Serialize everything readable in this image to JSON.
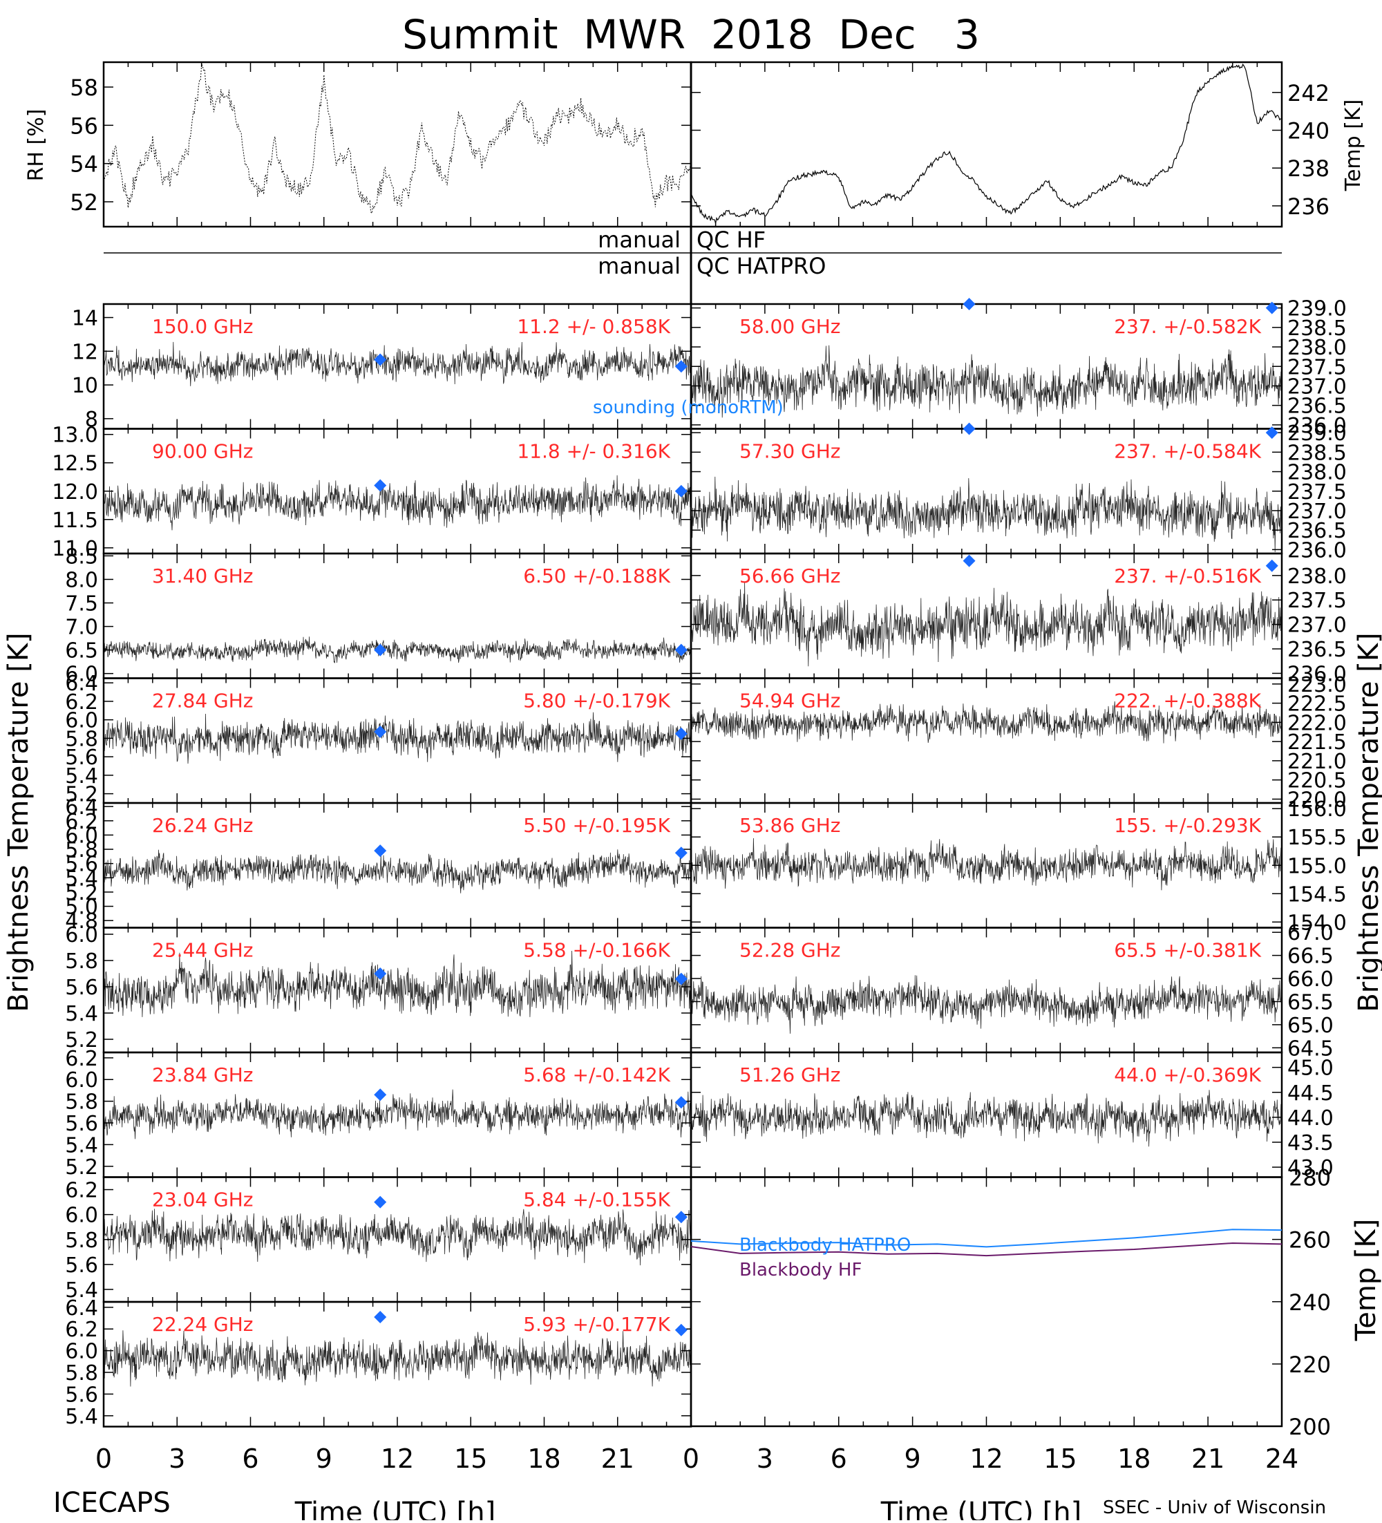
{
  "title": "Summit  MWR  2018  Dec   3",
  "footer": {
    "left": "ICECAPS",
    "right": "SSEC - Univ of Wisconsin"
  },
  "xlabel": "Time (UTC) [h]",
  "ylabel_left": "Brightness Temperature [K]",
  "ylabel_right": "Brightness Temperature [K]",
  "qc": {
    "line1": "manual",
    "line1b": "QC HF",
    "line2": "manual",
    "line2b": "QC HATPRO"
  },
  "legend": {
    "sounding": "sounding (monoRTM)",
    "bb_hatpro": "Blackbody HATPRO",
    "bb_hf": "Blackbody HF"
  },
  "colors": {
    "label": "#ff2a2a",
    "diamond": "#1a6bff",
    "trace": "#000000",
    "bb_hatpro": "#1a86ff",
    "bb_hf": "#6a1a6a"
  },
  "chart_data": {
    "xlim": [
      0,
      24
    ],
    "xticks": [
      0,
      3,
      6,
      9,
      12,
      15,
      18,
      21
    ],
    "xticks_right": [
      0,
      3,
      6,
      9,
      12,
      15,
      18,
      21,
      24
    ],
    "top": {
      "rh": {
        "ylabel": "RH [%]",
        "ylim": [
          50.7,
          59.3
        ],
        "ticks": [
          52,
          54,
          56,
          58
        ],
        "series": [
          [
            0,
            53.5
          ],
          [
            0.5,
            54.5
          ],
          [
            1,
            52
          ],
          [
            1.5,
            54
          ],
          [
            2,
            55
          ],
          [
            2.5,
            53
          ],
          [
            3,
            53.5
          ],
          [
            3.5,
            55
          ],
          [
            4,
            59
          ],
          [
            4.5,
            57
          ],
          [
            5,
            58
          ],
          [
            5.5,
            56
          ],
          [
            6,
            53
          ],
          [
            6.5,
            52.5
          ],
          [
            7,
            55
          ],
          [
            7.5,
            53
          ],
          [
            8,
            52.5
          ],
          [
            8.5,
            53.5
          ],
          [
            9,
            58.5
          ],
          [
            9.5,
            54
          ],
          [
            10,
            54.5
          ],
          [
            10.5,
            52.5
          ],
          [
            11,
            51.5
          ],
          [
            11.5,
            53.5
          ],
          [
            12,
            52
          ],
          [
            12.5,
            52.5
          ],
          [
            13,
            56
          ],
          [
            13.5,
            54
          ],
          [
            14,
            53
          ],
          [
            14.5,
            56.5
          ],
          [
            15,
            55
          ],
          [
            15.5,
            54
          ],
          [
            16,
            55.5
          ],
          [
            16.5,
            56
          ],
          [
            17,
            57
          ],
          [
            17.5,
            56
          ],
          [
            18,
            55
          ],
          [
            18.5,
            56.5
          ],
          [
            19,
            56.5
          ],
          [
            19.5,
            57
          ],
          [
            20,
            56
          ],
          [
            20.5,
            55.5
          ],
          [
            21,
            56
          ],
          [
            21.5,
            55
          ],
          [
            22,
            56
          ],
          [
            22.5,
            52
          ],
          [
            23,
            53
          ],
          [
            23.5,
            53
          ],
          [
            24,
            54
          ]
        ]
      },
      "temp": {
        "ylabel": "Temp [K]",
        "ylim": [
          234.9,
          243.6
        ],
        "ticks": [
          236,
          238,
          240,
          242
        ],
        "series": [
          [
            0,
            236.5
          ],
          [
            0.5,
            235.5
          ],
          [
            1,
            235.2
          ],
          [
            1.5,
            235.7
          ],
          [
            2,
            235.4
          ],
          [
            2.5,
            235.8
          ],
          [
            3,
            235.5
          ],
          [
            3.5,
            236.3
          ],
          [
            4,
            237.3
          ],
          [
            4.5,
            237.6
          ],
          [
            5,
            237.7
          ],
          [
            5.5,
            237.8
          ],
          [
            6,
            237.5
          ],
          [
            6.5,
            235.9
          ],
          [
            7,
            236.2
          ],
          [
            7.5,
            236.1
          ],
          [
            8,
            236.6
          ],
          [
            8.5,
            236.3
          ],
          [
            9,
            237
          ],
          [
            9.5,
            237.8
          ],
          [
            10,
            238.5
          ],
          [
            10.5,
            238.9
          ],
          [
            11,
            237.8
          ],
          [
            11.5,
            237.3
          ],
          [
            12,
            236.5
          ],
          [
            12.5,
            236
          ],
          [
            13,
            235.6
          ],
          [
            13.5,
            236.2
          ],
          [
            14,
            236.8
          ],
          [
            14.5,
            237.3
          ],
          [
            15,
            236.3
          ],
          [
            15.5,
            236
          ],
          [
            16,
            236.3
          ],
          [
            16.5,
            236.8
          ],
          [
            17,
            237.1
          ],
          [
            17.5,
            237.6
          ],
          [
            18,
            237.2
          ],
          [
            18.5,
            237.1
          ],
          [
            19,
            237.7
          ],
          [
            19.5,
            238
          ],
          [
            20,
            239.5
          ],
          [
            20.5,
            241.9
          ],
          [
            21,
            242.6
          ],
          [
            21.5,
            243.1
          ],
          [
            22,
            243.3
          ],
          [
            22.5,
            243.4
          ],
          [
            23,
            240.4
          ],
          [
            23.5,
            241
          ],
          [
            24,
            240.5
          ]
        ]
      }
    },
    "left_panels": [
      {
        "freq": "150.0 GHz",
        "stat": "11.2 +/- 0.858K",
        "ylim": [
          7.4,
          14.8
        ],
        "ticks": [
          8,
          10,
          12,
          14
        ],
        "tick_labels": [
          "8",
          "10",
          "12",
          "14"
        ],
        "mean": 11.2,
        "noise": 0.858,
        "sounding": [
          [
            11.3,
            11.5
          ],
          [
            23.6,
            11.1
          ]
        ]
      },
      {
        "freq": "90.00 GHz",
        "stat": "11.8 +/- 0.316K",
        "ylim": [
          10.9,
          13.1
        ],
        "ticks": [
          11,
          11.5,
          12,
          12.5,
          13
        ],
        "tick_labels": [
          "11.0",
          "11.5",
          "12.0",
          "12.5",
          "13.0"
        ],
        "mean": 11.8,
        "noise": 0.316,
        "sounding": [
          [
            11.3,
            12.1
          ],
          [
            23.6,
            12.0
          ]
        ]
      },
      {
        "freq": "31.40 GHz",
        "stat": "6.50 +/-0.188K",
        "ylim": [
          5.9,
          8.55
        ],
        "ticks": [
          6,
          6.5,
          7,
          7.5,
          8,
          8.5
        ],
        "tick_labels": [
          "6.0",
          "6.5",
          "7.0",
          "7.5",
          "8.0",
          "8.5"
        ],
        "mean": 6.5,
        "noise": 0.188,
        "sounding": [
          [
            11.3,
            6.5
          ],
          [
            23.6,
            6.5
          ]
        ]
      },
      {
        "freq": "27.84 GHz",
        "stat": "5.80 +/-0.179K",
        "ylim": [
          5.1,
          6.45
        ],
        "ticks": [
          5.2,
          5.4,
          5.6,
          5.8,
          6,
          6.2,
          6.4
        ],
        "tick_labels": [
          "5.2",
          "5.4",
          "5.6",
          "5.8",
          "6.0",
          "6.2",
          "6.4"
        ],
        "mean": 5.8,
        "noise": 0.179,
        "sounding": [
          [
            11.3,
            5.87
          ],
          [
            23.6,
            5.85
          ]
        ]
      },
      {
        "freq": "26.24 GHz",
        "stat": "5.50 +/-0.195K",
        "ylim": [
          4.7,
          6.45
        ],
        "ticks": [
          4.8,
          5,
          5.2,
          5.4,
          5.6,
          5.8,
          6,
          6.2,
          6.4
        ],
        "tick_labels": [
          "4.8",
          "5.0",
          "5.2",
          "5.4",
          "5.6",
          "5.8",
          "6.0",
          "6.2",
          "6.4"
        ],
        "mean": 5.5,
        "noise": 0.195,
        "sounding": [
          [
            11.3,
            5.78
          ],
          [
            23.6,
            5.75
          ]
        ]
      },
      {
        "freq": "25.44 GHz",
        "stat": "5.58 +/-0.166K",
        "ylim": [
          5.1,
          6.05
        ],
        "ticks": [
          5.2,
          5.4,
          5.6,
          5.8,
          6
        ],
        "tick_labels": [
          "5.2",
          "5.4",
          "5.6",
          "5.8",
          "6.0"
        ],
        "mean": 5.58,
        "noise": 0.166,
        "sounding": [
          [
            11.3,
            5.7
          ],
          [
            23.6,
            5.66
          ]
        ]
      },
      {
        "freq": "23.84 GHz",
        "stat": "5.68 +/-0.142K",
        "ylim": [
          5.1,
          6.25
        ],
        "ticks": [
          5.2,
          5.4,
          5.6,
          5.8,
          6,
          6.2
        ],
        "tick_labels": [
          "5.2",
          "5.4",
          "5.6",
          "5.8",
          "6.0",
          "6.2"
        ],
        "mean": 5.68,
        "noise": 0.142,
        "sounding": [
          [
            11.3,
            5.86
          ],
          [
            23.6,
            5.79
          ]
        ]
      },
      {
        "freq": "23.04 GHz",
        "stat": "5.84 +/-0.155K",
        "ylim": [
          5.3,
          6.3
        ],
        "ticks": [
          5.4,
          5.6,
          5.8,
          6,
          6.2
        ],
        "tick_labels": [
          "5.4",
          "5.6",
          "5.8",
          "6.0",
          "6.2"
        ],
        "mean": 5.84,
        "noise": 0.155,
        "sounding": [
          [
            11.3,
            6.1
          ],
          [
            23.6,
            5.98
          ]
        ]
      },
      {
        "freq": "22.24 GHz",
        "stat": "5.93 +/-0.177K",
        "ylim": [
          5.3,
          6.45
        ],
        "ticks": [
          5.4,
          5.6,
          5.8,
          6,
          6.2,
          6.4
        ],
        "tick_labels": [
          "5.4",
          "5.6",
          "5.8",
          "6.0",
          "6.2",
          "6.4"
        ],
        "mean": 5.93,
        "noise": 0.177,
        "sounding": [
          [
            11.3,
            6.31
          ],
          [
            23.6,
            6.19
          ]
        ]
      }
    ],
    "right_panels": [
      {
        "freq": "58.00 GHz",
        "stat": "237. +/-0.582K",
        "ylim": [
          235.9,
          239.1
        ],
        "ticks": [
          236,
          236.5,
          237,
          237.5,
          238,
          238.5,
          239
        ],
        "tick_labels": [
          "236.0",
          "236.5",
          "237.0",
          "237.5",
          "238.0",
          "238.5",
          "239.0"
        ],
        "mean": 237,
        "noise": 0.582,
        "sounding": [
          [
            11.3,
            239.1
          ],
          [
            23.6,
            239.0
          ]
        ]
      },
      {
        "freq": "57.30 GHz",
        "stat": "237. +/-0.584K",
        "ylim": [
          235.9,
          239.1
        ],
        "ticks": [
          236,
          236.5,
          237,
          237.5,
          238,
          238.5,
          239
        ],
        "tick_labels": [
          "236.0",
          "236.5",
          "237.0",
          "237.5",
          "238.0",
          "238.5",
          "239.0"
        ],
        "mean": 237,
        "noise": 0.584,
        "sounding": [
          [
            11.3,
            239.1
          ],
          [
            23.6,
            239.0
          ]
        ]
      },
      {
        "freq": "56.66 GHz",
        "stat": "237. +/-0.516K",
        "ylim": [
          235.9,
          238.45
        ],
        "ticks": [
          236,
          236.5,
          237,
          237.5,
          238
        ],
        "tick_labels": [
          "236.0",
          "236.5",
          "237.0",
          "237.5",
          "238.0"
        ],
        "mean": 237,
        "noise": 0.516,
        "sounding": [
          [
            11.3,
            238.3
          ],
          [
            23.6,
            238.2
          ]
        ]
      },
      {
        "freq": "54.94 GHz",
        "stat": "222. +/-0.388K",
        "ylim": [
          219.9,
          223.15
        ],
        "ticks": [
          220,
          220.5,
          221,
          221.5,
          222,
          222.5,
          223
        ],
        "tick_labels": [
          "220.0",
          "220.5",
          "221.0",
          "221.5",
          "222.0",
          "222.5",
          "223.0"
        ],
        "mean": 222,
        "noise": 0.388,
        "sounding": []
      },
      {
        "freq": "53.86 GHz",
        "stat": "155. +/-0.293K",
        "ylim": [
          153.9,
          156.1
        ],
        "ticks": [
          154,
          154.5,
          155,
          155.5,
          156
        ],
        "tick_labels": [
          "154.0",
          "154.5",
          "155.0",
          "155.5",
          "156.0"
        ],
        "mean": 155,
        "noise": 0.293,
        "sounding": []
      },
      {
        "freq": "52.28 GHz",
        "stat": "65.5 +/-0.381K",
        "ylim": [
          64.4,
          67.1
        ],
        "ticks": [
          64.5,
          65,
          65.5,
          66,
          66.5,
          67
        ],
        "tick_labels": [
          "64.5",
          "65.0",
          "65.5",
          "66.0",
          "66.5",
          "67.0"
        ],
        "mean": 65.5,
        "noise": 0.381,
        "sounding": []
      },
      {
        "freq": "51.26 GHz",
        "stat": "44.0 +/-0.369K",
        "ylim": [
          42.8,
          45.3
        ],
        "ticks": [
          43,
          43.5,
          44,
          44.5,
          45
        ],
        "tick_labels": [
          "43.0",
          "43.5",
          "44.0",
          "44.5",
          "45.0"
        ],
        "mean": 44,
        "noise": 0.369,
        "sounding": []
      }
    ],
    "blackbody": {
      "ylabel": "Temp [K]",
      "ylim": [
        200,
        280
      ],
      "ticks": [
        200,
        220,
        240,
        260,
        280
      ],
      "hatpro": [
        [
          0,
          259.5
        ],
        [
          2,
          258.5
        ],
        [
          4,
          258.8
        ],
        [
          6,
          259
        ],
        [
          8,
          258.2
        ],
        [
          10,
          258.5
        ],
        [
          12,
          257.6
        ],
        [
          14,
          258.5
        ],
        [
          16,
          259.5
        ],
        [
          18,
          260.5
        ],
        [
          20,
          261.8
        ],
        [
          22,
          263.2
        ],
        [
          24,
          263
        ]
      ],
      "hf": [
        [
          0,
          257.7
        ],
        [
          2,
          255.5
        ],
        [
          4,
          255.8
        ],
        [
          6,
          256
        ],
        [
          8,
          255.3
        ],
        [
          10,
          255.5
        ],
        [
          12,
          254.8
        ],
        [
          14,
          255.5
        ],
        [
          16,
          256.2
        ],
        [
          18,
          256.8
        ],
        [
          20,
          257.8
        ],
        [
          22,
          258.8
        ],
        [
          24,
          258.5
        ]
      ]
    }
  }
}
